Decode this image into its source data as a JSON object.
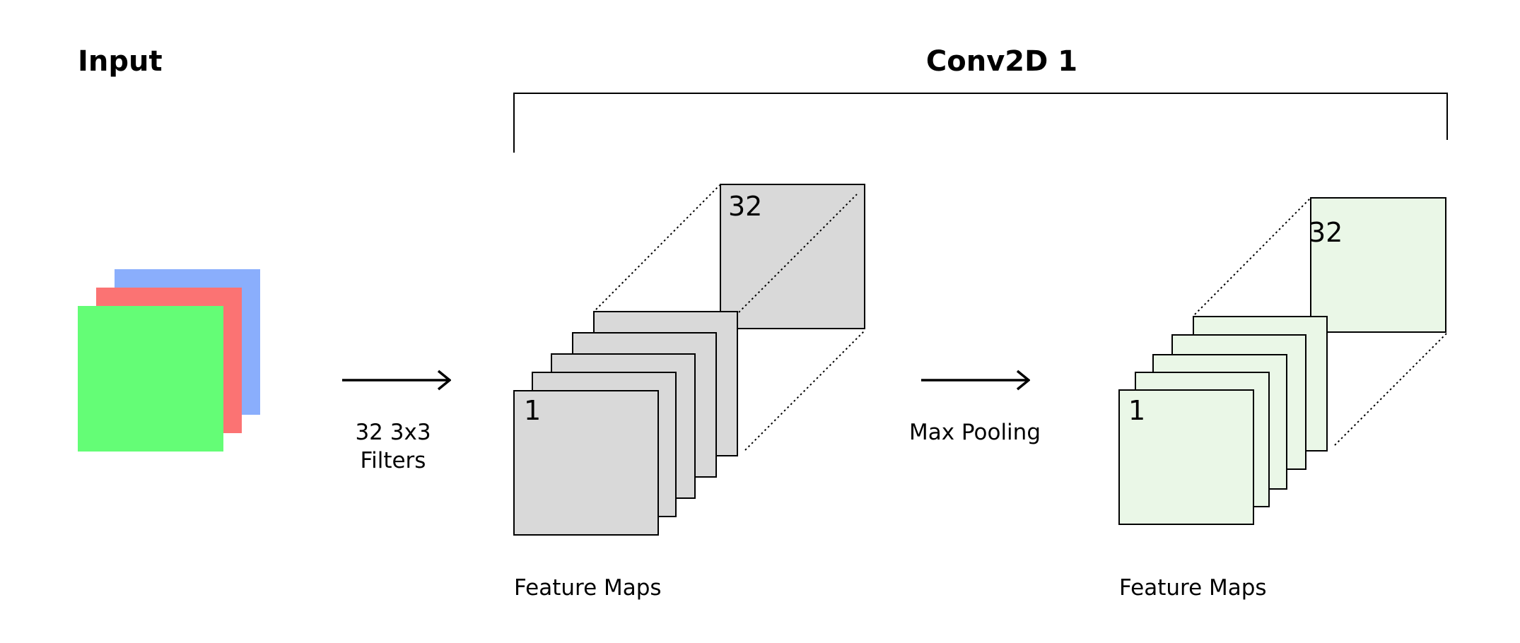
{
  "input": {
    "title": "Input",
    "channel_colors": [
      "#8aaefc",
      "#fb7373",
      "#64fd76"
    ]
  },
  "conv_block": {
    "title": "Conv2D 1"
  },
  "filters_arrow": {
    "line1": "32 3x3",
    "line2": "Filters"
  },
  "pooling_arrow": {
    "label": "Max Pooling"
  },
  "feature_maps_conv": {
    "label": "Feature Maps",
    "first_index": "1",
    "last_index": "32",
    "fill": "#d9d9d9"
  },
  "feature_maps_pool": {
    "label": "Feature Maps",
    "first_index": "1",
    "last_index": "32",
    "fill": "#eaf7e7"
  }
}
